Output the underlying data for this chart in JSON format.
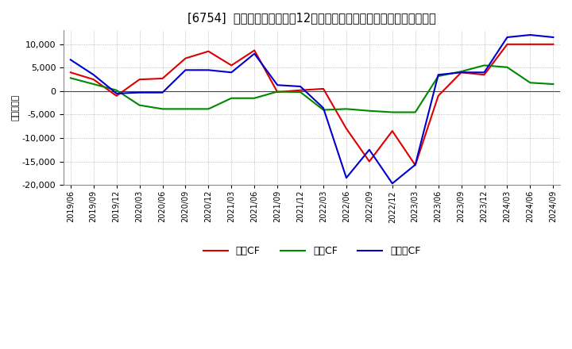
{
  "title": "[6754]  キャッシュフローの12か月移動合計の対前年同期増減額の推移",
  "ylabel": "（百万円）",
  "background_color": "#ffffff",
  "plot_bg_color": "#ffffff",
  "grid_color": "#999999",
  "ylim": [
    -20000,
    13000
  ],
  "yticks": [
    -20000,
    -15000,
    -10000,
    -5000,
    0,
    5000,
    10000
  ],
  "dates": [
    "2019/06",
    "2019/09",
    "2019/12",
    "2020/03",
    "2020/06",
    "2020/09",
    "2020/12",
    "2021/03",
    "2021/06",
    "2021/09",
    "2021/12",
    "2022/03",
    "2022/06",
    "2022/09",
    "2022/12",
    "2023/03",
    "2023/06",
    "2023/09",
    "2023/12",
    "2024/03",
    "2024/06",
    "2024/09"
  ],
  "eigyo_cf": [
    4000,
    2500,
    -1000,
    2500,
    2700,
    7000,
    8500,
    5500,
    8700,
    -200,
    200,
    500,
    -8000,
    -15000,
    -8500,
    -15800,
    -1000,
    4000,
    3500,
    10000,
    10000,
    10000
  ],
  "toshi_cf": [
    2800,
    1500,
    200,
    -3000,
    -3800,
    -3800,
    -3800,
    -1500,
    -1500,
    -100,
    -200,
    -4000,
    -3800,
    -4200,
    -4500,
    -4500,
    3200,
    4200,
    5500,
    5100,
    1800,
    1500
  ],
  "free_cf": [
    6700,
    3500,
    -500,
    -300,
    -300,
    4500,
    4500,
    4000,
    8000,
    1300,
    1000,
    -3600,
    -18500,
    -12500,
    -19700,
    -15700,
    3500,
    4000,
    4000,
    11500,
    12000,
    11500
  ],
  "eigyo_color": "#dd0000",
  "toshi_color": "#008800",
  "free_color": "#0000cc",
  "legend_labels": [
    "営業CF",
    "投資CF",
    "フリーCF"
  ]
}
